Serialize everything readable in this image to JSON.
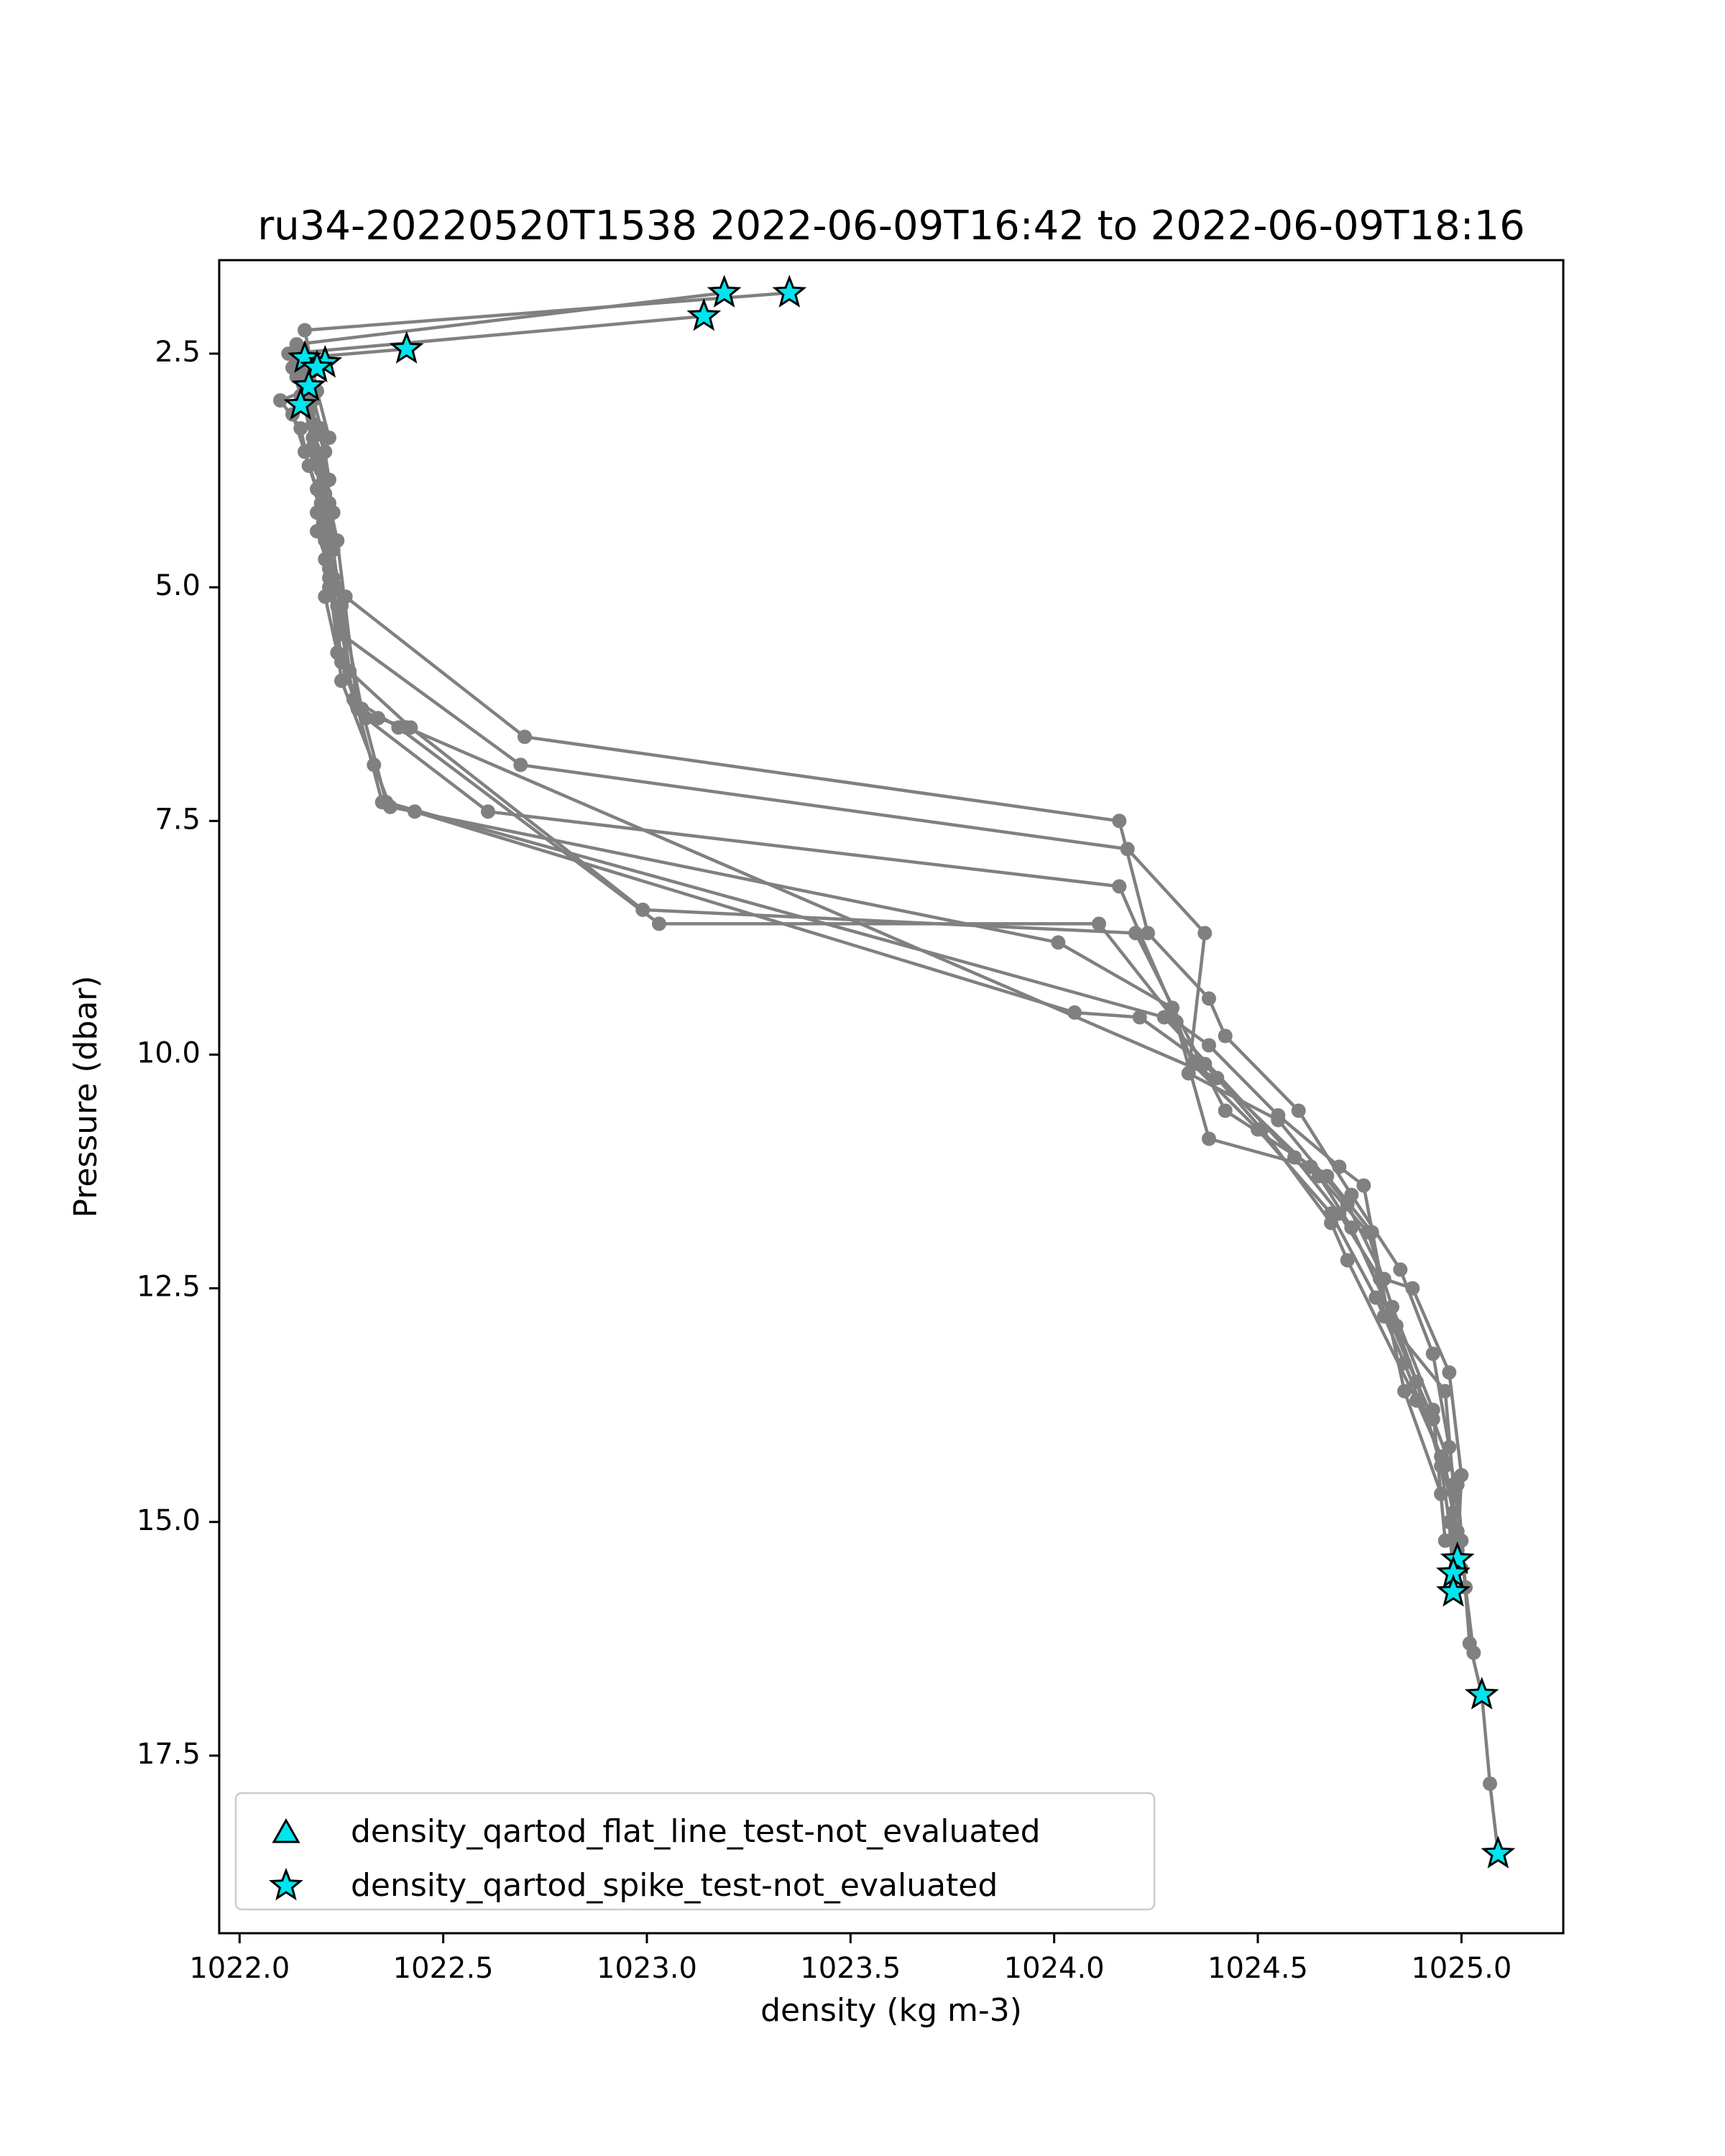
{
  "chart_data": {
    "type": "line",
    "title": "ru34-20220520T1538 2022-06-09T16:42 to 2022-06-09T18:16",
    "xlabel": "density (kg m-3)",
    "ylabel": "Pressure (dbar)",
    "xlim": [
      1021.95,
      1025.25
    ],
    "ylim": [
      19.4,
      1.5
    ],
    "y_inverted": true,
    "grid": false,
    "x_ticks": [
      1022.0,
      1022.5,
      1023.0,
      1023.5,
      1024.0,
      1024.5,
      1025.0
    ],
    "x_tick_labels": [
      "1022.0",
      "1022.5",
      "1023.0",
      "1023.5",
      "1024.0",
      "1024.5",
      "1025.0"
    ],
    "y_ticks": [
      2.5,
      5.0,
      7.5,
      10.0,
      12.5,
      15.0,
      17.5
    ],
    "y_tick_labels": [
      "2.5",
      "5.0",
      "7.5",
      "10.0",
      "12.5",
      "15.0",
      "17.5"
    ],
    "line_color": "#808080",
    "marker_color": "#808080",
    "flag_color": "#00e5ee",
    "flag_edge_color": "#000000",
    "legend": {
      "placement": "lower-left",
      "entries": [
        {
          "label": "density_qartod_flat_line_test-not_evaluated",
          "marker": "triangle"
        },
        {
          "label": "density_qartod_spike_test-not_evaluated",
          "marker": "star"
        }
      ]
    },
    "series": [
      {
        "x": [
          1023.35,
          1022.16,
          1022.19,
          1022.22,
          1022.2,
          1022.23,
          1022.22,
          1022.24,
          1022.26,
          1022.7,
          1024.16,
          1024.23,
          1024.38,
          1024.42,
          1024.6,
          1024.73,
          1024.85,
          1024.93,
          1024.97,
          1025.0,
          1025.02,
          1025.05,
          1025.07,
          1025.09
        ],
        "y": [
          1.85,
          2.25,
          2.9,
          3.4,
          3.7,
          4.2,
          4.6,
          5.0,
          5.1,
          6.6,
          7.5,
          8.7,
          9.4,
          9.8,
          10.6,
          11.5,
          12.3,
          13.2,
          14.2,
          15.2,
          16.3,
          16.85,
          17.8,
          18.55
        ]
      },
      {
        "x": [
          1023.19,
          1022.14,
          1022.17,
          1022.2,
          1022.22,
          1022.21,
          1022.23,
          1022.22,
          1022.25,
          1022.69,
          1024.18,
          1024.37,
          1024.33,
          1024.55,
          1024.72,
          1024.81,
          1024.88,
          1024.97,
          1025.0,
          1024.99
        ],
        "y": [
          1.85,
          2.4,
          2.8,
          3.3,
          3.85,
          4.3,
          4.9,
          5.0,
          5.5,
          6.9,
          7.8,
          8.7,
          10.2,
          10.7,
          11.6,
          12.4,
          12.5,
          13.4,
          14.5,
          15.4
        ]
      },
      {
        "x": [
          1023.14,
          1022.12,
          1022.15,
          1022.18,
          1022.2,
          1022.19,
          1022.22,
          1022.21,
          1022.24,
          1022.31,
          1022.61,
          1024.16,
          1024.29,
          1024.34,
          1024.5,
          1024.68,
          1024.79,
          1024.86,
          1024.95,
          1024.98,
          1025.0
        ],
        "y": [
          2.1,
          2.5,
          2.95,
          3.4,
          3.9,
          4.4,
          4.8,
          5.1,
          5.7,
          6.4,
          7.4,
          8.2,
          9.5,
          10.1,
          10.8,
          11.7,
          12.6,
          13.3,
          14.3,
          14.9,
          15.5
        ]
      },
      {
        "x": [
          1022.41,
          1022.14,
          1022.16,
          1022.18,
          1022.2,
          1022.19,
          1022.21,
          1022.24,
          1022.28,
          1022.39,
          1023.03,
          1024.11,
          1024.3,
          1024.38,
          1024.55,
          1024.7,
          1024.76,
          1024.82,
          1024.93,
          1024.99,
          1025.01,
          1025.03
        ],
        "y": [
          2.45,
          2.55,
          2.85,
          3.25,
          3.75,
          4.2,
          4.7,
          5.2,
          6.2,
          6.5,
          8.6,
          8.6,
          9.65,
          9.9,
          10.65,
          11.2,
          11.4,
          12.8,
          13.9,
          14.6,
          15.7,
          16.4
        ]
      },
      {
        "x": [
          1022.16,
          1022.13,
          1022.17,
          1022.21,
          1022.21,
          1022.23,
          1022.27,
          1022.42,
          1022.99,
          1024.2,
          1024.42,
          1024.67,
          1024.78,
          1024.81,
          1024.96,
          1024.98,
          1024.98
        ],
        "y": [
          2.55,
          2.65,
          3.1,
          3.55,
          4.0,
          4.6,
          5.9,
          6.5,
          8.45,
          8.7,
          10.6,
          11.3,
          11.9,
          12.8,
          13.6,
          14.6,
          15.75
        ]
      },
      {
        "x": [
          1022.21,
          1022.15,
          1022.18,
          1022.19,
          1022.22,
          1022.24,
          1022.29,
          1022.35,
          1022.43,
          1024.05,
          1024.21,
          1024.37,
          1024.51,
          1024.68,
          1024.72,
          1024.89,
          1024.96,
          1024.99
        ],
        "y": [
          2.6,
          2.7,
          3.0,
          3.6,
          4.1,
          4.5,
          6.3,
          7.3,
          7.4,
          9.55,
          9.6,
          10.1,
          10.8,
          11.8,
          12.2,
          13.7,
          14.4,
          15.1
        ]
      },
      {
        "x": [
          1022.19,
          1022.14,
          1022.16,
          1022.18,
          1022.2,
          1022.22,
          1022.22,
          1022.25,
          1022.33,
          1022.37,
          1024.01,
          1024.29,
          1024.38,
          1024.63,
          1024.77,
          1024.83,
          1024.93,
          1024.96,
          1024.99
        ],
        "y": [
          2.65,
          2.75,
          3.05,
          3.5,
          4.0,
          4.4,
          4.9,
          6.0,
          6.9,
          7.35,
          8.8,
          9.5,
          10.9,
          11.2,
          11.9,
          12.7,
          13.8,
          15.2,
          15.3
        ]
      },
      {
        "x": [
          1022.16,
          1022.1,
          1022.15,
          1022.17,
          1022.2,
          1022.21,
          1022.23,
          1022.25,
          1022.29,
          1022.34,
          1022.41,
          1024.4,
          1024.65,
          1024.73,
          1024.84,
          1024.89,
          1024.95,
          1024.97,
          1024.98
        ],
        "y": [
          2.9,
          3.0,
          3.3,
          3.7,
          4.1,
          4.5,
          5.0,
          5.8,
          6.3,
          6.4,
          6.5,
          10.25,
          11.3,
          11.85,
          12.9,
          13.5,
          14.4,
          15.0,
          15.6
        ]
      },
      {
        "x": [
          1022.15,
          1022.13,
          1022.16,
          1022.19,
          1022.21,
          1022.22,
          1022.25,
          1022.3,
          1022.36,
          1024.27,
          1024.59,
          1024.7,
          1024.8,
          1024.86,
          1024.95
        ],
        "y": [
          3.05,
          3.15,
          3.55,
          3.95,
          4.35,
          4.8,
          5.2,
          6.3,
          7.3,
          9.6,
          11.1,
          11.7,
          12.4,
          13.6,
          14.7
        ]
      }
    ],
    "spike_flags": [
      {
        "x": 1023.35,
        "y": 1.85
      },
      {
        "x": 1023.19,
        "y": 1.85
      },
      {
        "x": 1023.14,
        "y": 2.1
      },
      {
        "x": 1022.41,
        "y": 2.45
      },
      {
        "x": 1022.16,
        "y": 2.55
      },
      {
        "x": 1022.21,
        "y": 2.6
      },
      {
        "x": 1022.19,
        "y": 2.65
      },
      {
        "x": 1022.17,
        "y": 2.85
      },
      {
        "x": 1022.15,
        "y": 3.05
      },
      {
        "x": 1024.99,
        "y": 15.4
      },
      {
        "x": 1024.98,
        "y": 15.55
      },
      {
        "x": 1024.98,
        "y": 15.75
      },
      {
        "x": 1025.05,
        "y": 16.85
      },
      {
        "x": 1025.09,
        "y": 18.55
      }
    ]
  }
}
